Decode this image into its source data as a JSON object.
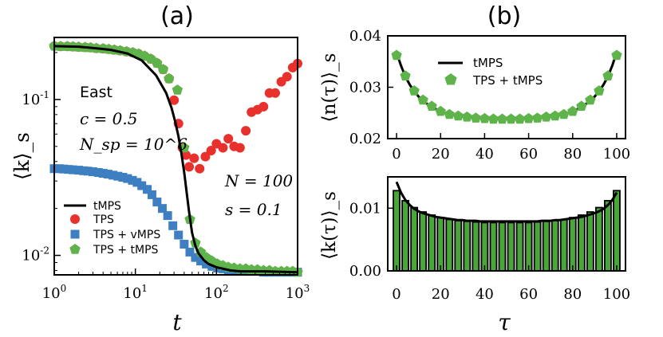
{
  "chart_data": [
    {
      "panel_label": "(a)",
      "type": "scatter",
      "x_scale": "log",
      "y_scale": "log",
      "xlim": [
        1,
        1000
      ],
      "ylim": [
        0.0075,
        0.25
      ],
      "xlabel": "t",
      "ylabel": "⟨k⟩_s",
      "x_ticks": [
        1,
        10,
        100,
        1000
      ],
      "x_tick_labels": [
        "10^0",
        "10^1",
        "10^2",
        "10^3"
      ],
      "y_ticks": [
        0.01,
        0.1
      ],
      "y_tick_labels": [
        "10^-2",
        "10^-1"
      ],
      "annotations": [
        "East",
        "c = 0.5",
        "N_sp = 10^6",
        "N = 100",
        "s = 0.1"
      ],
      "legend_position": "lower-left",
      "series": [
        {
          "name": "tMPS",
          "kind": "line",
          "color": "#000000",
          "x": [
            1,
            2,
            3,
            5,
            8,
            12,
            18,
            24,
            28,
            31,
            34,
            37,
            40,
            43,
            46,
            50,
            55,
            60,
            70,
            80,
            100,
            150,
            200,
            400,
            1000
          ],
          "y": [
            0.22,
            0.218,
            0.214,
            0.208,
            0.197,
            0.178,
            0.143,
            0.11,
            0.088,
            0.072,
            0.058,
            0.045,
            0.034,
            0.025,
            0.019,
            0.014,
            0.0115,
            0.0103,
            0.0093,
            0.0088,
            0.0084,
            0.008,
            0.0079,
            0.0079,
            0.0078
          ]
        },
        {
          "name": "TPS",
          "kind": "marker",
          "marker": "circle",
          "color": "#e8312c",
          "x": [
            1,
            1.2,
            1.45,
            1.7,
            2,
            2.4,
            2.8,
            3.3,
            4,
            4.7,
            5.5,
            6.5,
            7.8,
            9.3,
            11,
            13,
            15.5,
            18.5,
            22,
            26,
            30,
            34,
            38,
            42,
            46,
            53,
            62,
            73,
            86,
            100,
            120,
            140,
            165,
            195,
            230,
            270,
            320,
            380,
            450,
            530,
            630,
            740,
            870,
            1000
          ],
          "y": [
            0.22,
            0.219,
            0.219,
            0.218,
            0.217,
            0.216,
            0.215,
            0.213,
            0.212,
            0.21,
            0.208,
            0.206,
            0.203,
            0.2,
            0.196,
            0.19,
            0.182,
            0.171,
            0.156,
            0.136,
            0.099,
            0.07,
            0.049,
            0.044,
            0.037,
            0.042,
            0.036,
            0.043,
            0.047,
            0.052,
            0.049,
            0.056,
            0.05,
            0.049,
            0.063,
            0.083,
            0.086,
            0.09,
            0.11,
            0.11,
            0.13,
            0.14,
            0.16,
            0.17
          ]
        },
        {
          "name": "TPS + vMPS",
          "kind": "marker",
          "marker": "square",
          "color": "#3d7fc0",
          "x": [
            1,
            1.15,
            1.3,
            1.5,
            1.7,
            2,
            2.3,
            2.6,
            3,
            3.5,
            4,
            4.6,
            5.3,
            6.1,
            7,
            8,
            9.2,
            10.5,
            12,
            14,
            16,
            18.5,
            21.5,
            25,
            29,
            34,
            40,
            47,
            55,
            64,
            75,
            88,
            103,
            120,
            140,
            165,
            195,
            230,
            270,
            320,
            380,
            450,
            530,
            630,
            740,
            870,
            1000
          ],
          "y": [
            0.036,
            0.036,
            0.0358,
            0.0356,
            0.0354,
            0.0352,
            0.0349,
            0.0347,
            0.0344,
            0.034,
            0.0336,
            0.0332,
            0.0327,
            0.0322,
            0.0317,
            0.0311,
            0.0303,
            0.0294,
            0.028,
            0.0265,
            0.0245,
            0.022,
            0.02,
            0.018,
            0.0155,
            0.0135,
            0.0118,
            0.0105,
            0.0097,
            0.0092,
            0.0088,
            0.0085,
            0.0083,
            0.0082,
            0.0081,
            0.008,
            0.008,
            0.0079,
            0.0079,
            0.0079,
            0.0078,
            0.0078,
            0.0078,
            0.0078,
            0.0078,
            0.0078,
            0.0078
          ]
        },
        {
          "name": "TPS + tMPS",
          "kind": "marker",
          "marker": "pentagon",
          "color": "#5fb34b",
          "x": [
            1,
            1.2,
            1.45,
            1.7,
            2,
            2.4,
            2.8,
            3.3,
            4,
            4.7,
            5.5,
            6.5,
            7.8,
            9.3,
            11,
            13,
            15.5,
            18.5,
            22,
            26,
            33,
            40,
            47,
            55,
            64,
            75,
            88,
            103,
            120,
            140,
            165,
            195,
            230,
            270,
            320,
            380,
            450,
            530,
            630,
            740,
            870,
            1000
          ],
          "y": [
            0.22,
            0.219,
            0.219,
            0.218,
            0.217,
            0.216,
            0.215,
            0.213,
            0.212,
            0.21,
            0.208,
            0.206,
            0.203,
            0.2,
            0.196,
            0.19,
            0.182,
            0.171,
            0.156,
            0.136,
            0.115,
            0.049,
            0.017,
            0.012,
            0.0105,
            0.0097,
            0.0092,
            0.0088,
            0.0086,
            0.0084,
            0.0083,
            0.0082,
            0.0082,
            0.0081,
            0.0081,
            0.008,
            0.008,
            0.0079,
            0.0079,
            0.0079,
            0.0079,
            0.0078
          ]
        }
      ]
    },
    {
      "panel_label": "(b)",
      "type": "line",
      "xlim": [
        -4,
        104
      ],
      "ylim": [
        0.02,
        0.04
      ],
      "xlabel": "",
      "ylabel": "⟨n(τ)⟩_s",
      "x_ticks": [
        0,
        20,
        40,
        60,
        80,
        100
      ],
      "x_tick_labels": [
        "0",
        "20",
        "40",
        "60",
        "80",
        "100"
      ],
      "y_ticks": [
        0.02,
        0.03,
        0.04
      ],
      "y_tick_labels": [
        "0.02",
        "0.03",
        "0.04"
      ],
      "legend_position": "top-center",
      "series": [
        {
          "name": "tMPS",
          "kind": "line",
          "color": "#000000",
          "x": [
            0,
            2,
            4,
            6,
            8,
            10,
            12,
            14,
            16,
            18,
            20,
            22,
            24,
            26,
            28,
            30,
            32,
            34,
            36,
            38,
            40,
            42,
            44,
            46,
            48,
            50,
            52,
            54,
            56,
            58,
            60,
            62,
            64,
            66,
            68,
            70,
            72,
            74,
            76,
            78,
            80,
            82,
            84,
            86,
            88,
            90,
            92,
            94,
            96,
            98,
            100
          ],
          "y": [
            0.0368,
            0.0342,
            0.0321,
            0.0305,
            0.0292,
            0.0282,
            0.0274,
            0.0267,
            0.0262,
            0.0257,
            0.0253,
            0.025,
            0.0248,
            0.0246,
            0.0244,
            0.0243,
            0.0242,
            0.0241,
            0.024,
            0.024,
            0.0239,
            0.0239,
            0.0238,
            0.0238,
            0.0238,
            0.0238,
            0.0238,
            0.0238,
            0.0238,
            0.0239,
            0.0239,
            0.024,
            0.024,
            0.0241,
            0.0242,
            0.0243,
            0.0244,
            0.0246,
            0.0248,
            0.025,
            0.0253,
            0.0257,
            0.0262,
            0.0267,
            0.0274,
            0.0282,
            0.0292,
            0.0305,
            0.0321,
            0.0342,
            0.0368
          ]
        },
        {
          "name": "TPS + tMPS",
          "kind": "marker",
          "marker": "pentagon",
          "color": "#5fb34b",
          "x": [
            0,
            4,
            8,
            12,
            16,
            20,
            24,
            28,
            32,
            36,
            40,
            44,
            48,
            52,
            56,
            60,
            64,
            68,
            72,
            76,
            80,
            84,
            88,
            92,
            96,
            100
          ],
          "y": [
            0.0362,
            0.0322,
            0.0293,
            0.0275,
            0.0263,
            0.0253,
            0.0247,
            0.0244,
            0.0242,
            0.024,
            0.0239,
            0.0238,
            0.0238,
            0.0238,
            0.0238,
            0.0239,
            0.024,
            0.0242,
            0.0244,
            0.0247,
            0.0253,
            0.0263,
            0.0275,
            0.0293,
            0.0322,
            0.0362
          ]
        }
      ]
    },
    {
      "panel_label": "",
      "type": "bar",
      "xlim": [
        -4,
        104
      ],
      "ylim": [
        0,
        0.015
      ],
      "xlabel": "τ",
      "ylabel": "⟨k(τ)⟩_s",
      "x_ticks": [
        0,
        20,
        40,
        60,
        80,
        100
      ],
      "x_tick_labels": [
        "0",
        "20",
        "40",
        "60",
        "80",
        "100"
      ],
      "y_ticks": [
        0.0,
        0.01
      ],
      "y_tick_labels": [
        "0.00",
        "0.01"
      ],
      "bar_color": "#4aa63a",
      "categories": [
        0,
        4,
        8,
        12,
        16,
        20,
        24,
        28,
        32,
        36,
        40,
        44,
        48,
        52,
        56,
        60,
        64,
        68,
        72,
        76,
        80,
        84,
        88,
        92,
        96,
        100
      ],
      "values": [
        0.0128,
        0.0112,
        0.0101,
        0.0094,
        0.0089,
        0.0085,
        0.0082,
        0.008,
        0.0079,
        0.0078,
        0.0077,
        0.0077,
        0.0077,
        0.0077,
        0.0077,
        0.0077,
        0.0078,
        0.0079,
        0.008,
        0.0082,
        0.0085,
        0.0089,
        0.0094,
        0.0101,
        0.0112,
        0.0128
      ],
      "curve": {
        "name": "tMPS",
        "color": "#000000",
        "x": [
          0,
          2,
          4,
          6,
          8,
          10,
          12,
          14,
          16,
          18,
          20,
          22,
          24,
          26,
          28,
          30,
          32,
          34,
          36,
          38,
          40,
          42,
          44,
          46,
          48,
          50,
          52,
          54,
          56,
          58,
          60,
          62,
          64,
          66,
          68,
          70,
          72,
          74,
          76,
          78,
          80,
          82,
          84,
          86,
          88,
          90,
          92,
          94,
          96,
          98,
          100
        ],
        "y": [
          0.0142,
          0.0125,
          0.0113,
          0.0105,
          0.0099,
          0.0095,
          0.0092,
          0.009,
          0.0088,
          0.0086,
          0.0085,
          0.0084,
          0.0083,
          0.0082,
          0.0081,
          0.0081,
          0.008,
          0.008,
          0.008,
          0.0079,
          0.0079,
          0.0079,
          0.0079,
          0.0079,
          0.0079,
          0.0079,
          0.0079,
          0.0079,
          0.0079,
          0.0079,
          0.0079,
          0.0079,
          0.0079,
          0.008,
          0.008,
          0.008,
          0.0081,
          0.0081,
          0.0082,
          0.0083,
          0.0084,
          0.0085,
          0.0086,
          0.0088,
          0.009,
          0.0092,
          0.0095,
          0.0099,
          0.0105,
          0.0113,
          0.0125
        ]
      }
    }
  ]
}
